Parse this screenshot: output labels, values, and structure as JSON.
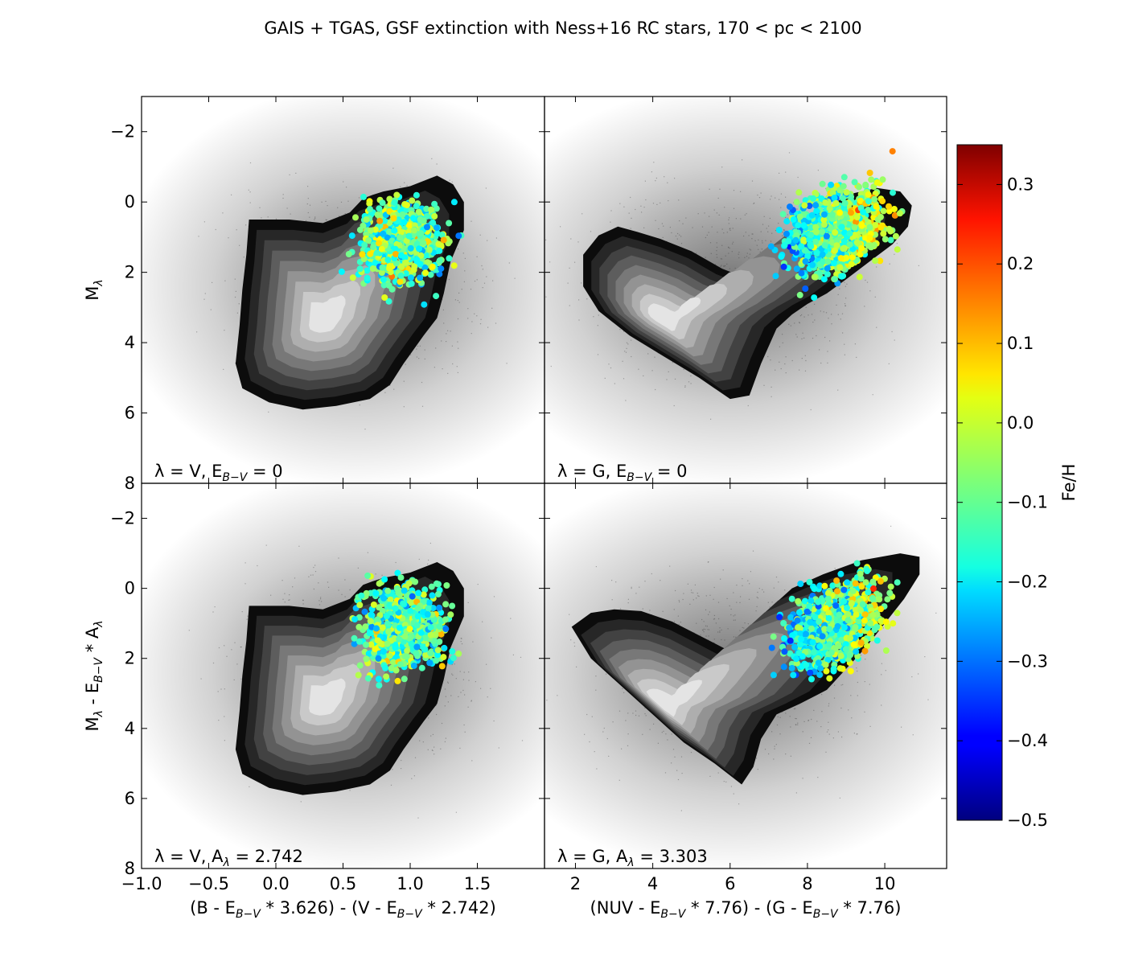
{
  "figure": {
    "title": "GAIS + TGAS, GSF extinction with Ness+16 RC stars, 170 < pc < 2100"
  },
  "colorbar": {
    "label": "Fe/H",
    "range": [
      -0.5,
      0.35
    ],
    "ticks": [
      "0.3",
      "0.2",
      "0.1",
      "0.0",
      "−0.1",
      "−0.2",
      "−0.3",
      "−0.4",
      "−0.5"
    ],
    "tick_values": [
      0.3,
      0.2,
      0.1,
      0.0,
      -0.1,
      -0.2,
      -0.3,
      -0.4,
      -0.5
    ],
    "colormap": "jet"
  },
  "chart_data": [
    {
      "type": "scatter",
      "panel": "top-left",
      "annotation": {
        "base": "λ = V, E",
        "sub": "B−V",
        "rest": " = 0"
      },
      "ylabel": {
        "base": "M",
        "sub": "λ"
      },
      "xlim": [
        -1.0,
        2.0
      ],
      "ylim": [
        8,
        -3
      ],
      "xticks": [],
      "xtick_labels": [],
      "yticks": [
        -2,
        0,
        2,
        4,
        6,
        8
      ],
      "ytick_labels": [
        "−2",
        "0",
        "2",
        "4",
        "6",
        "8"
      ],
      "background": "density contours (grey) of GAIS + TGAS stars",
      "rc_stars": {
        "x_range": [
          0.4,
          1.5
        ],
        "y_range": [
          -1.2,
          3.5
        ],
        "color_by": "Fe/H"
      }
    },
    {
      "type": "scatter",
      "panel": "top-right",
      "annotation": {
        "base": "λ = G, E",
        "sub": "B−V",
        "rest": " = 0"
      },
      "xlim": [
        1.2,
        11.6
      ],
      "ylim": [
        8,
        -3
      ],
      "xticks": [],
      "xtick_labels": [],
      "yticks": [],
      "ytick_labels": [],
      "background": "density contours (grey) of GAIS + TGAS stars",
      "rc_stars": {
        "x_range": [
          6.5,
          11.0
        ],
        "y_range": [
          -1.5,
          3.2
        ],
        "color_by": "Fe/H"
      }
    },
    {
      "type": "scatter",
      "panel": "bottom-left",
      "annotation": {
        "base": "λ = V, A",
        "sub": "λ",
        "rest": " = 2.742"
      },
      "ylabel": {
        "base": "M",
        "sub": "λ",
        "mid": " - E",
        "sub2": "B−V",
        "rest": " * A",
        "sub3": "λ"
      },
      "xlabel": {
        "base": "(B - E",
        "sub": "B−V",
        "mid": " * 3.626) - (V - E",
        "sub2": "B−V",
        "rest": " * 2.742)"
      },
      "xlim": [
        -1.0,
        2.0
      ],
      "ylim": [
        8,
        -3
      ],
      "xticks": [
        -1.0,
        -0.5,
        0.0,
        0.5,
        1.0,
        1.5
      ],
      "xtick_labels": [
        "−1.0",
        "−0.5",
        "0.0",
        "0.5",
        "1.0",
        "1.5"
      ],
      "yticks": [
        -2,
        0,
        2,
        4,
        6,
        8
      ],
      "ytick_labels": [
        "−2",
        "0",
        "2",
        "4",
        "6",
        "8"
      ],
      "background": "density contours (grey) of GAIS + TGAS stars",
      "rc_stars": {
        "x_range": [
          0.4,
          1.5
        ],
        "y_range": [
          -1.2,
          3.5
        ],
        "color_by": "Fe/H"
      }
    },
    {
      "type": "scatter",
      "panel": "bottom-right",
      "annotation": {
        "base": "λ = G, A",
        "sub": "λ",
        "rest": " = 3.303"
      },
      "xlabel": {
        "base": "(NUV - E",
        "sub": "B−V",
        "mid": " * 7.76) - (G - E",
        "sub2": "B−V",
        "rest": " * 7.76)"
      },
      "xlim": [
        1.2,
        11.6
      ],
      "ylim": [
        8,
        -3
      ],
      "xticks": [
        2,
        4,
        6,
        8,
        10
      ],
      "xtick_labels": [
        "2",
        "4",
        "6",
        "8",
        "10"
      ],
      "yticks": [],
      "ytick_labels": [],
      "background": "density contours (grey) of GAIS + TGAS stars",
      "rc_stars": {
        "x_range": [
          6.5,
          11.0
        ],
        "y_range": [
          -1.2,
          3.2
        ],
        "color_by": "Fe/H"
      }
    }
  ]
}
